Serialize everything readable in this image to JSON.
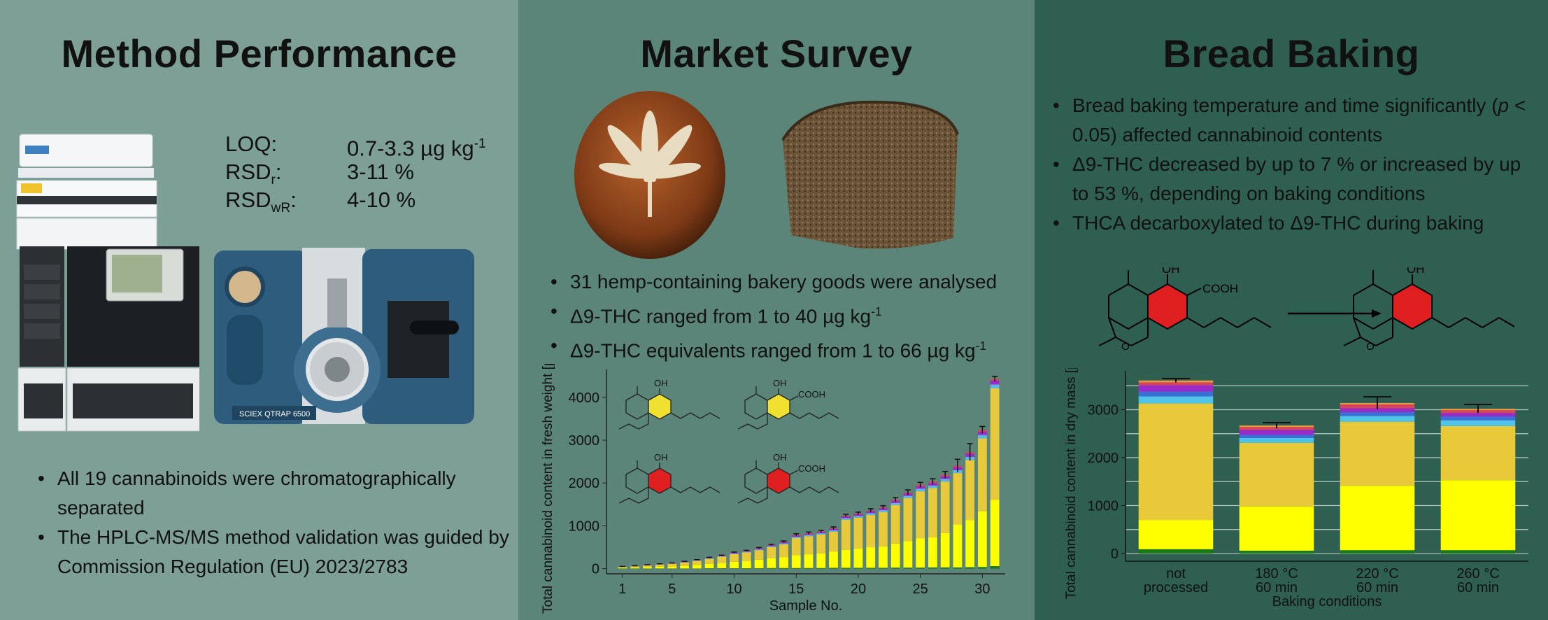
{
  "panels": {
    "method": {
      "title": "Method Performance",
      "specs": [
        {
          "label": "LOQ:",
          "value": "0.7-3.3 µg kg",
          "value_sup": "-1"
        },
        {
          "label": "RSD",
          "label_sub": "r",
          "label_tail": ":",
          "value": "3-11 %"
        },
        {
          "label": "RSD",
          "label_sub": "wR",
          "label_tail": ":",
          "value": "4-10 %"
        }
      ],
      "bullets": [
        "All 19 cannabinoids were chromatographically separated",
        "The HPLC-MS/MS method validation was guided by Commission Regulation (EU) 2023/2783"
      ],
      "instrument_badge": "SCIEX QTRAP 6500"
    },
    "market": {
      "title": "Market Survey",
      "bullets": [
        {
          "text": "31 hemp-containing bakery goods were analysed"
        },
        {
          "text": "Δ9-THC ranged from 1 to 40 µg kg",
          "sup": "-1"
        },
        {
          "text": "Δ9-THC equivalents ranged from 1 to 66 µg kg",
          "sup": "-1"
        }
      ]
    },
    "baking": {
      "title": "Bread Baking",
      "bullets": [
        {
          "pre": "Bread baking temperature and time significantly (",
          "em": "p",
          "post": " < 0.05) affected cannabinoid contents"
        },
        {
          "pre": "Δ9-THC decreased by up to 7 % or increased by up to 53 %, depending on baking conditions"
        },
        {
          "pre": "THCA decarboxylated to Δ9-THC during baking"
        }
      ],
      "structure_labels": {
        "oh": "OH",
        "cooh": "COOH"
      }
    }
  },
  "chart_data": [
    {
      "type": "bar",
      "stacked": true,
      "ylabel": "Total cannabinoid content in fresh weight [µg/kg]",
      "xlabel": "Sample No.",
      "yticks": [
        0,
        1000,
        2000,
        3000,
        4000
      ],
      "xticks": [
        1,
        5,
        10,
        15,
        20,
        25,
        30
      ],
      "ylim": [
        -120,
        4650
      ],
      "categories": [
        1,
        2,
        3,
        4,
        5,
        6,
        7,
        8,
        9,
        10,
        11,
        12,
        13,
        14,
        15,
        16,
        17,
        18,
        19,
        20,
        21,
        22,
        23,
        24,
        25,
        26,
        27,
        28,
        29,
        30,
        31
      ],
      "series": [
        {
          "color": "#1a7a1a",
          "values": [
            5,
            5,
            5,
            5,
            5,
            5,
            5,
            10,
            10,
            10,
            10,
            10,
            15,
            15,
            15,
            15,
            15,
            20,
            20,
            20,
            20,
            20,
            25,
            25,
            25,
            30,
            30,
            30,
            35,
            40,
            60
          ]
        },
        {
          "color": "#ffff00",
          "values": [
            15,
            20,
            30,
            40,
            50,
            60,
            80,
            100,
            120,
            150,
            170,
            200,
            230,
            250,
            300,
            320,
            340,
            380,
            420,
            450,
            480,
            500,
            560,
            620,
            680,
            700,
            800,
            1000,
            1100,
            1300,
            1550
          ]
        },
        {
          "color": "#e8c93a",
          "values": [
            20,
            30,
            40,
            50,
            60,
            80,
            100,
            120,
            150,
            180,
            200,
            220,
            260,
            300,
            400,
            420,
            440,
            460,
            700,
            720,
            750,
            800,
            900,
            1000,
            1100,
            1150,
            1200,
            1200,
            1400,
            1700,
            2600
          ]
        },
        {
          "color": "#5fb6e8",
          "values": [
            3,
            3,
            5,
            5,
            5,
            8,
            8,
            10,
            10,
            15,
            15,
            20,
            20,
            25,
            30,
            30,
            30,
            35,
            40,
            40,
            45,
            45,
            50,
            55,
            60,
            60,
            65,
            70,
            75,
            80,
            90
          ]
        },
        {
          "color": "#9a2bc8",
          "values": [
            3,
            3,
            5,
            5,
            5,
            8,
            8,
            10,
            10,
            15,
            15,
            20,
            20,
            25,
            30,
            30,
            30,
            35,
            40,
            40,
            45,
            45,
            50,
            55,
            60,
            60,
            65,
            70,
            75,
            80,
            90
          ]
        },
        {
          "color": "#d6455a",
          "values": [
            2,
            2,
            3,
            3,
            3,
            5,
            5,
            5,
            5,
            8,
            8,
            10,
            10,
            12,
            15,
            15,
            15,
            15,
            20,
            20,
            20,
            20,
            25,
            25,
            30,
            30,
            30,
            35,
            35,
            40,
            40
          ]
        }
      ],
      "errors": [
        5,
        5,
        5,
        5,
        5,
        5,
        5,
        10,
        10,
        10,
        10,
        15,
        15,
        20,
        25,
        25,
        25,
        30,
        30,
        30,
        40,
        40,
        50,
        60,
        60,
        70,
        80,
        150,
        200,
        80,
        60
      ]
    },
    {
      "type": "bar",
      "stacked": true,
      "ylabel": "Total cannabinoid content in dry mass [µg/kg]",
      "xlabel": "Baking conditions",
      "yticks": [
        0,
        1000,
        2000,
        3000
      ],
      "ylim": [
        -160,
        3810
      ],
      "categories": [
        {
          "l1": "not",
          "l2": "processed"
        },
        {
          "l1": "180 °C",
          "l2": "60 min"
        },
        {
          "l1": "220 °C",
          "l2": "60 min"
        },
        {
          "l1": "260 °C",
          "l2": "60 min"
        }
      ],
      "series": [
        {
          "color": "#1a7a1a",
          "values": [
            90,
            60,
            70,
            70
          ]
        },
        {
          "color": "#ffff00",
          "values": [
            610,
            920,
            1340,
            1460
          ]
        },
        {
          "color": "#e8c93a",
          "values": [
            2430,
            1330,
            1340,
            1130
          ]
        },
        {
          "color": "#4fc3e8",
          "values": [
            150,
            100,
            120,
            120
          ]
        },
        {
          "color": "#3b6fd6",
          "values": [
            100,
            70,
            80,
            80
          ]
        },
        {
          "color": "#9a2bc8",
          "values": [
            130,
            100,
            80,
            70
          ]
        },
        {
          "color": "#d6455a",
          "values": [
            60,
            60,
            80,
            60
          ]
        },
        {
          "color": "#e89a40",
          "values": [
            40,
            30,
            30,
            30
          ]
        }
      ],
      "errors": [
        40,
        60,
        130,
        90
      ]
    }
  ]
}
